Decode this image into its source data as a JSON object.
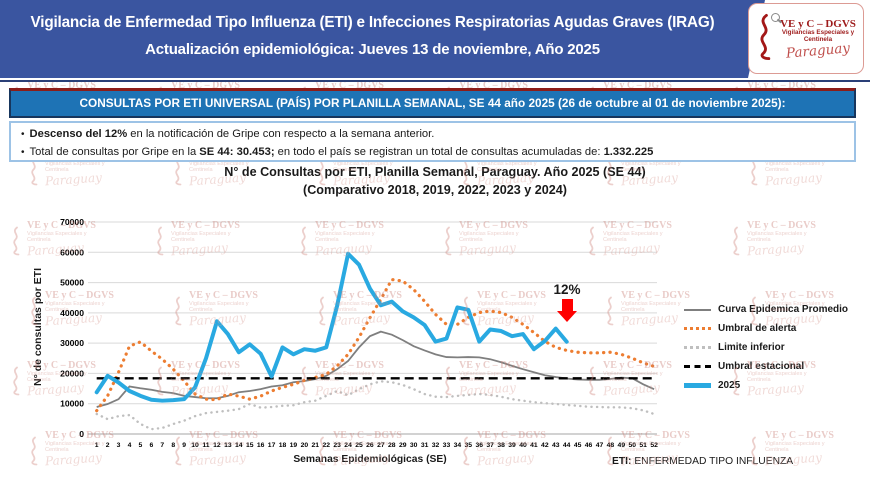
{
  "header": {
    "title_line1": "Vigilancia de Enfermedad Tipo Influenza (ETI) e Infecciones Respiratorias Agudas Graves (IRAG)",
    "title_line2": "Actualización epidemiológica: Jueves 13 de noviembre, Año 2025",
    "logo": {
      "line1": "VE y C – DGVS",
      "line2": "Vigilancias Especiales y",
      "line3": "Centinela",
      "script": "Paraguay"
    }
  },
  "banner": {
    "text": "CONSULTAS POR ETI UNIVERSAL (PAÍS) POR PLANILLA SEMANAL, SE 44 año 2025 (26 de octubre al 01 de noviembre 2025):"
  },
  "highlights": {
    "b1_bold": "Descenso del 12%",
    "b1_rest": " en la notificación de Gripe con respecto a la semana anterior.",
    "b2_pre": "Total de consultas por Gripe en la ",
    "b2_bold1": "SE 44: 30.453;",
    "b2_mid": " en todo el país se registran un total de consultas acumuladas de: ",
    "b2_bold2": "1.332.225"
  },
  "chart": {
    "title_line1": "N° de Consultas por ETI, Planilla Semanal, Paraguay. Año 2025  (SE 44)",
    "title_line2": "(Comparativo 2018, 2019, 2022, 2023 y 2024)",
    "ylabel": "N° de consultas por ETI",
    "xlabel": "Semanas Epidemiológicas (SE)",
    "annotation": {
      "text": "12%"
    }
  },
  "chart_data": {
    "type": "line",
    "title": "N° de Consultas por ETI, Planilla Semanal, Paraguay. Año 2025 (SE 44)",
    "subtitle": "(Comparativo 2018, 2019, 2022, 2023 y 2024)",
    "xlabel": "Semanas Epidemiológicas (SE)",
    "ylabel": "N° de consultas por ETI",
    "ylim": [
      0,
      70000
    ],
    "y_ticks": [
      0,
      10000,
      20000,
      30000,
      40000,
      50000,
      60000,
      70000
    ],
    "x": [
      1,
      2,
      3,
      4,
      5,
      6,
      7,
      8,
      9,
      10,
      11,
      12,
      13,
      14,
      15,
      16,
      17,
      18,
      19,
      20,
      21,
      22,
      23,
      24,
      25,
      26,
      27,
      28,
      29,
      30,
      31,
      32,
      33,
      34,
      35,
      36,
      37,
      38,
      39,
      40,
      41,
      42,
      43,
      44,
      45,
      46,
      47,
      48,
      49,
      50,
      51,
      52
    ],
    "grid": "horizontal",
    "legend_position": "right",
    "series": [
      {
        "name": "Curva Epidemica Promedio",
        "style": "gray-solid",
        "values": [
          8900,
          9900,
          11500,
          15700,
          15100,
          14600,
          13900,
          13500,
          12600,
          12200,
          11800,
          11800,
          12600,
          13800,
          14200,
          14800,
          15700,
          16100,
          17100,
          17500,
          18100,
          19200,
          21400,
          24100,
          28600,
          32300,
          33800,
          32800,
          31000,
          29000,
          27600,
          26300,
          25400,
          25300,
          25400,
          25300,
          24700,
          23700,
          22500,
          21400,
          20400,
          19400,
          18800,
          18300,
          18000,
          17900,
          17900,
          18200,
          18600,
          18400,
          16400,
          14800
        ]
      },
      {
        "name": "Umbral de alerta",
        "style": "orange-dotted",
        "values": [
          7700,
          12600,
          20400,
          29000,
          30400,
          27400,
          24700,
          21400,
          17500,
          13200,
          11500,
          11300,
          13200,
          12500,
          11500,
          12500,
          14200,
          15400,
          16400,
          17700,
          18700,
          19700,
          22500,
          26300,
          31900,
          38400,
          44500,
          51000,
          50500,
          47700,
          43800,
          39500,
          36200,
          36200,
          38500,
          40100,
          40600,
          40100,
          38500,
          36200,
          33500,
          30600,
          28600,
          27600,
          27000,
          26800,
          26800,
          27000,
          26300,
          25000,
          23500,
          22300
        ]
      },
      {
        "name": "Limite inferior",
        "style": "gray-dotted",
        "values": [
          6600,
          4900,
          5900,
          6250,
          3300,
          1600,
          2000,
          3300,
          4400,
          5900,
          6900,
          7300,
          7700,
          8200,
          9900,
          8700,
          8900,
          9300,
          9500,
          10500,
          11000,
          12600,
          14200,
          12800,
          14800,
          16400,
          17400,
          17100,
          16200,
          14800,
          13200,
          12300,
          12200,
          12600,
          12900,
          13200,
          12900,
          12300,
          11500,
          11000,
          10500,
          10200,
          9900,
          9600,
          9300,
          9000,
          8900,
          8800,
          8800,
          8500,
          7800,
          6600
        ]
      },
      {
        "name": "Umbral estacional",
        "style": "black-dashed",
        "constant": 18400
      },
      {
        "name": "2025",
        "style": "blue-solid",
        "start_week": 1,
        "values": [
          13800,
          19200,
          17000,
          14200,
          12600,
          11300,
          11000,
          11200,
          11500,
          15400,
          25000,
          37200,
          33000,
          27000,
          29600,
          26500,
          19000,
          28600,
          26300,
          28000,
          27500,
          28600,
          42400,
          59500,
          55900,
          48000,
          42500,
          43700,
          40500,
          38500,
          36000,
          30500,
          31500,
          41800,
          41000,
          30500,
          34500,
          34000,
          32300,
          33000,
          28000,
          30700,
          34800,
          30453
        ]
      }
    ],
    "annotation": {
      "text": "12%",
      "week": 44,
      "value": 30453,
      "marker": "red-down-arrow"
    }
  },
  "footer": {
    "bold": "ETI:",
    "rest": " ENFERMEDAD TIPO INFLUENZA"
  },
  "watermark": {
    "line1": "VE y C – DGVS",
    "line2": "Vigilancias Especiales y",
    "line3": "Centinela",
    "script": "Paraguay"
  },
  "colors": {
    "header_navy": "#3a55a0",
    "banner_blue": "#1e73b5",
    "banner_border": "#17365d",
    "maroon_rule": "#8c1d18",
    "highlight_border": "#9dc3e6",
    "line_2025": "#29a9e1",
    "line_alerta": "#ed7d31",
    "line_promedio": "#7f7f7f",
    "line_inferior": "#bfbfbf",
    "line_estacional": "#000000",
    "grid": "#d9d9d9",
    "arrow_red": "#ff0000"
  }
}
